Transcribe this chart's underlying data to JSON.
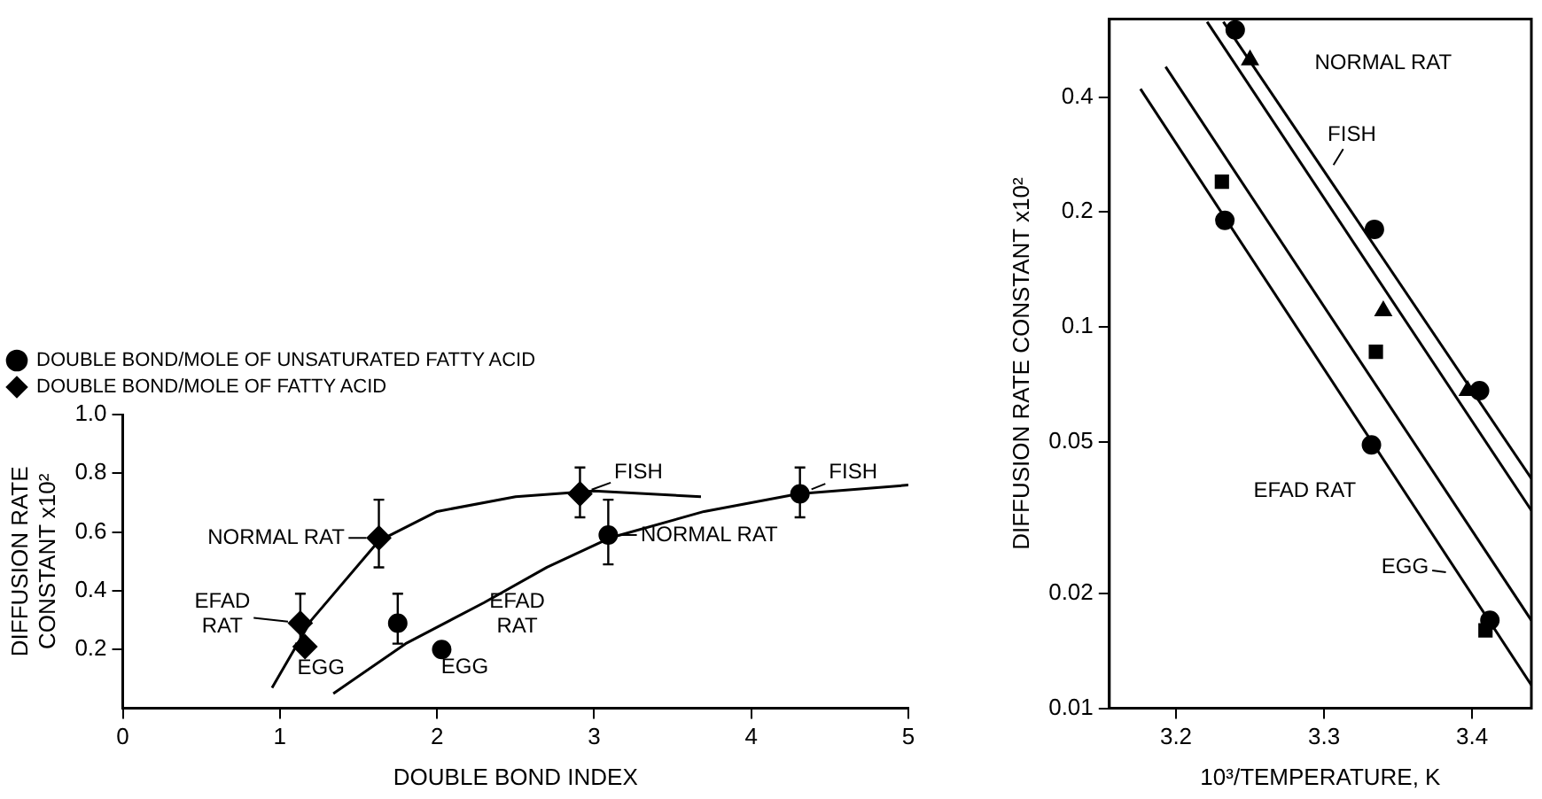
{
  "chart_data": [
    {
      "type": "scatter",
      "xlabel": "DOUBLE BOND INDEX",
      "ylabel": "DIFFUSION RATE\nCONSTANT x10²",
      "xlim": [
        0,
        5
      ],
      "ylim": [
        0,
        1
      ],
      "xticks": [
        0,
        1,
        2,
        3,
        4,
        5
      ],
      "yticks": [
        0.2,
        0.4,
        0.6,
        0.8,
        {
          "value": 1,
          "label": "1.0"
        }
      ],
      "grid": false,
      "legend": "top left",
      "series": [
        {
          "name": "DOUBLE BOND/MOLE OF UNSATURATED FATTY ACID",
          "type": "scatter",
          "marker": "circle",
          "color": "#000000",
          "x": [
            1.75,
            2.03,
            3.09,
            4.31
          ],
          "values": [
            0.29,
            0.2,
            0.59,
            0.73
          ],
          "errors": [
            [
              0.22,
              0.39
            ],
            [
              0.19,
              0.21
            ],
            [
              0.49,
              0.71
            ],
            [
              0.65,
              0.82
            ]
          ]
        },
        {
          "name": "DOUBLE BOND/MOLE OF FATTY ACID",
          "type": "scatter",
          "marker": "diamond",
          "color": "#000000",
          "x": [
            1.13,
            1.16,
            1.63,
            2.91
          ],
          "values": [
            0.29,
            0.21,
            0.58,
            0.73
          ],
          "errors": [
            [
              0.22,
              0.39
            ],
            [
              0.2,
              0.22
            ],
            [
              0.48,
              0.71
            ],
            [
              0.65,
              0.82
            ]
          ]
        },
        {
          "type": "line",
          "marker": "none",
          "color": "#000000",
          "x": [
            0.95,
            1.2,
            1.63,
            2.0,
            2.5,
            3.0,
            3.68
          ],
          "values": [
            0.07,
            0.3,
            0.57,
            0.67,
            0.72,
            0.74,
            0.72
          ]
        },
        {
          "type": "line",
          "marker": "none",
          "color": "#000000",
          "x": [
            1.34,
            1.8,
            2.3,
            2.7,
            3.1,
            3.7,
            4.3,
            5.0
          ],
          "values": [
            0.05,
            0.22,
            0.36,
            0.48,
            0.58,
            0.67,
            0.73,
            0.76
          ]
        }
      ],
      "annotations": [
        {
          "text": "FISH",
          "x": 2.91,
          "y": 0.73
        },
        {
          "text": "FISH",
          "x": 4.31,
          "y": 0.73
        },
        {
          "text": "NORMAL RAT",
          "x": 1.63,
          "y": 0.58
        },
        {
          "text": "NORMAL RAT",
          "x": 3.09,
          "y": 0.59
        },
        {
          "text": "EFAD\nRAT",
          "x": 1.13,
          "y": 0.29
        },
        "EFAD\nRAT",
        {
          "text": "EGG",
          "x": 1.16,
          "y": 0.21
        },
        {
          "text": "EGG",
          "x": 2.03,
          "y": 0.2
        }
      ]
    },
    {
      "type": "scatter",
      "xlabel": "10³/TEMPERATURE, K",
      "ylabel": "DIFFUSION RATE CONSTANT x10²",
      "log": "y",
      "xlim": [
        3.155,
        3.44
      ],
      "ylim": [
        0.01,
        0.64
      ],
      "xticks": [
        3.2,
        3.3,
        3.4
      ],
      "yticks": [
        0.01,
        0.02,
        0.05,
        0.1,
        0.2,
        0.4
      ],
      "grid": false,
      "series": [
        {
          "type": "scatter",
          "marker": "circle",
          "color": "#000000",
          "x": [
            3.24,
            3.334,
            3.405,
            3.233,
            3.332,
            3.412
          ],
          "values": [
            0.6,
            0.18,
            0.068,
            0.19,
            0.049,
            0.017
          ]
        },
        {
          "type": "scatter",
          "marker": "triangle",
          "color": "#000000",
          "x": [
            3.25,
            3.34,
            3.397
          ],
          "values": [
            0.5,
            0.11,
            0.068
          ]
        },
        {
          "type": "scatter",
          "marker": "square",
          "color": "#000000",
          "x": [
            3.231,
            3.335,
            3.409
          ],
          "values": [
            0.24,
            0.086,
            0.016
          ]
        },
        {
          "type": "line",
          "marker": "none",
          "color": "#000000",
          "x": [
            3.232,
            3.44
          ],
          "values": [
            0.63,
            0.04
          ]
        },
        {
          "type": "line",
          "marker": "none",
          "color": "#000000",
          "x": [
            3.221,
            3.44
          ],
          "values": [
            0.63,
            0.033
          ]
        },
        {
          "type": "line",
          "marker": "none",
          "color": "#000000",
          "x": [
            3.193,
            3.44
          ],
          "values": [
            0.48,
            0.017
          ]
        },
        {
          "type": "line",
          "marker": "none",
          "color": "#000000",
          "x": [
            3.176,
            3.44
          ],
          "values": [
            0.42,
            0.0115
          ]
        }
      ],
      "annotations": [
        "NORMAL RAT",
        {
          "text": "FISH",
          "x": 3.302,
          "y": 0.249
        },
        "EFAD RAT",
        {
          "text": "EGG",
          "x": 3.3906,
          "y": 0.0225
        }
      ]
    }
  ]
}
